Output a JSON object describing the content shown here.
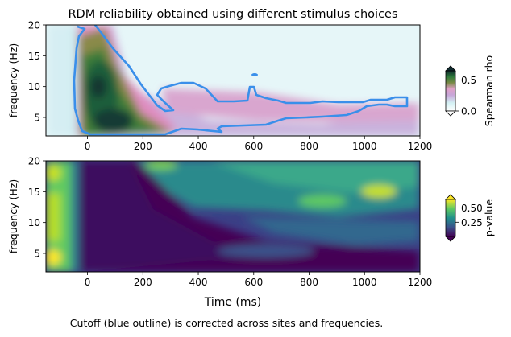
{
  "figure": {
    "title": "RDM reliability obtained using different stimulus choices",
    "caption": "Cutoff (blue outline) is corrected across sites and frequencies.",
    "colors": {
      "outline": "#3a8fea",
      "text": "#000000"
    }
  },
  "chart_data": [
    {
      "type": "heatmap",
      "title": "RDM reliability obtained using different stimulus choices",
      "xlabel": "",
      "ylabel": "frequency (Hz)",
      "xlim": [
        -150,
        1200
      ],
      "ylim": [
        2,
        20
      ],
      "xticks": [
        0,
        200,
        400,
        600,
        800,
        1000,
        1200
      ],
      "yticks": [
        5,
        10,
        15,
        20
      ],
      "x_tick_labels": [
        "0",
        "200",
        "400",
        "600",
        "800",
        "1000",
        "1200"
      ],
      "y_tick_labels": [
        "5",
        "10",
        "15",
        "20"
      ],
      "colormap": "cubehelix-like (white → cyan → pink → green → dark teal)",
      "colorbar": {
        "label": "Spearman rho",
        "ticks": [
          0.0,
          0.5
        ],
        "tick_labels": [
          "0.0",
          "0.5"
        ],
        "range": [
          0.0,
          0.65
        ],
        "extend": "both"
      },
      "outline_color": "#3a8fea",
      "outline_description": "significance cutoff"
    },
    {
      "type": "heatmap",
      "xlabel": "Time (ms)",
      "ylabel": "frequency (Hz)",
      "xlim": [
        -150,
        1200
      ],
      "ylim": [
        2,
        20
      ],
      "xticks": [
        0,
        200,
        400,
        600,
        800,
        1000,
        1200
      ],
      "yticks": [
        5,
        10,
        15,
        20
      ],
      "x_tick_labels": [
        "0",
        "200",
        "400",
        "600",
        "800",
        "1000",
        "1200"
      ],
      "y_tick_labels": [
        "5",
        "10",
        "15",
        "20"
      ],
      "colormap": "viridis",
      "colorbar": {
        "label": "p-value",
        "ticks": [
          0.25,
          0.5
        ],
        "tick_labels": [
          "0.25",
          "0.50"
        ],
        "range": [
          0.0,
          0.65
        ],
        "extend": "both"
      }
    }
  ]
}
